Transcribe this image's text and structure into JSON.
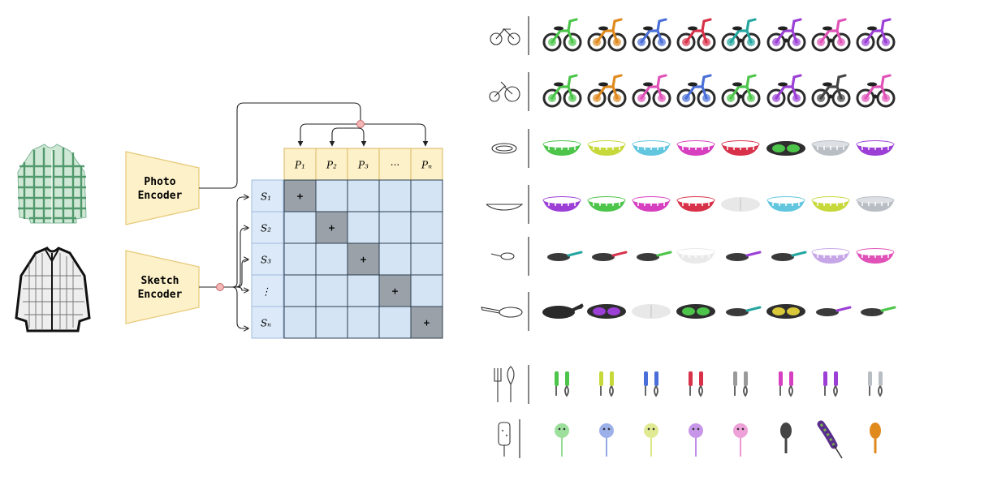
{
  "encoders": {
    "photo": {
      "line1": "Photo",
      "line2": "Encoder"
    },
    "sketch": {
      "line1": "Sketch",
      "line2": "Encoder"
    }
  },
  "matrix": {
    "photo_headers": [
      "P₁",
      "P₂",
      "P₃",
      "···",
      "Pₙ"
    ],
    "sketch_headers": [
      "S₁",
      "S₂",
      "S₃",
      "⋮",
      "Sₙ"
    ],
    "match_symbol": "+"
  },
  "colors": {
    "encoder_fill": "#fdf1c9",
    "encoder_stroke": "#e6c878",
    "photo_header_fill": "#fdf1c9",
    "sketch_header_fill": "#dce9f8",
    "cell_fill": "#d4e4f4",
    "diag_fill": "#9aa1a9",
    "node_fill": "#f4b6b6"
  },
  "retrieval_rows": [
    {
      "query": "bicycle-sketch-icon",
      "results": [
        "balance-bike-green",
        "balance-bike-orange",
        "balance-bike-blue",
        "balance-bike-red",
        "kids-bike-teal",
        "kids-bike-purple",
        "kids-bike-pink",
        "balance-bike-purple"
      ]
    },
    {
      "query": "tricycle-sketch-icon",
      "results": [
        "balance-bike-green",
        "balance-bike-orange",
        "balance-bike-pink",
        "balance-bike-blue",
        "kids-bike-green",
        "balance-bike-purple",
        "kids-bike-black",
        "kids-bike-pink"
      ]
    },
    {
      "query": "oval-bowl-sketch-icon",
      "results": [
        "bowl-green",
        "bowl-lime",
        "bowl-cyan",
        "bowl-magenta",
        "bowl-red",
        "divided-plate-green",
        "bowl-steel",
        "bowl-purple"
      ]
    },
    {
      "query": "shallow-dish-sketch-icon",
      "results": [
        "bowl-purple",
        "bowl-green",
        "bowl-magenta",
        "bowl-red",
        "divided-plate-white",
        "bowl-cyan",
        "bowl-lime",
        "bowl-steel"
      ]
    },
    {
      "query": "small-pan-sketch-icon",
      "results": [
        "pan-teal",
        "pan-red",
        "pan-green",
        "bowl-white",
        "pan-purple",
        "pan-teal",
        "bowl-lavender",
        "bowl-pink"
      ]
    },
    {
      "query": "frying-pan-sketch-icon",
      "results": [
        "pan-black",
        "divided-plate-purple",
        "divided-plate-white",
        "divided-plate-green",
        "pan-teal",
        "divided-plate-yellow",
        "pan-purple",
        "pan-green"
      ]
    },
    {
      "query": "cutlery-sketch-icon",
      "results": [
        "cutlery-green",
        "cutlery-lime",
        "cutlery-blue",
        "cutlery-red",
        "cutlery-grey",
        "cutlery-magenta",
        "cutlery-purple",
        "cutlery-steel"
      ]
    },
    {
      "query": "popsicle-sketch-icon",
      "results": [
        "teether-green",
        "teether-blue",
        "teether-lime",
        "teether-purple",
        "teether-pink",
        "spatula-black",
        "brush-toy",
        "spatula-orange"
      ]
    }
  ]
}
